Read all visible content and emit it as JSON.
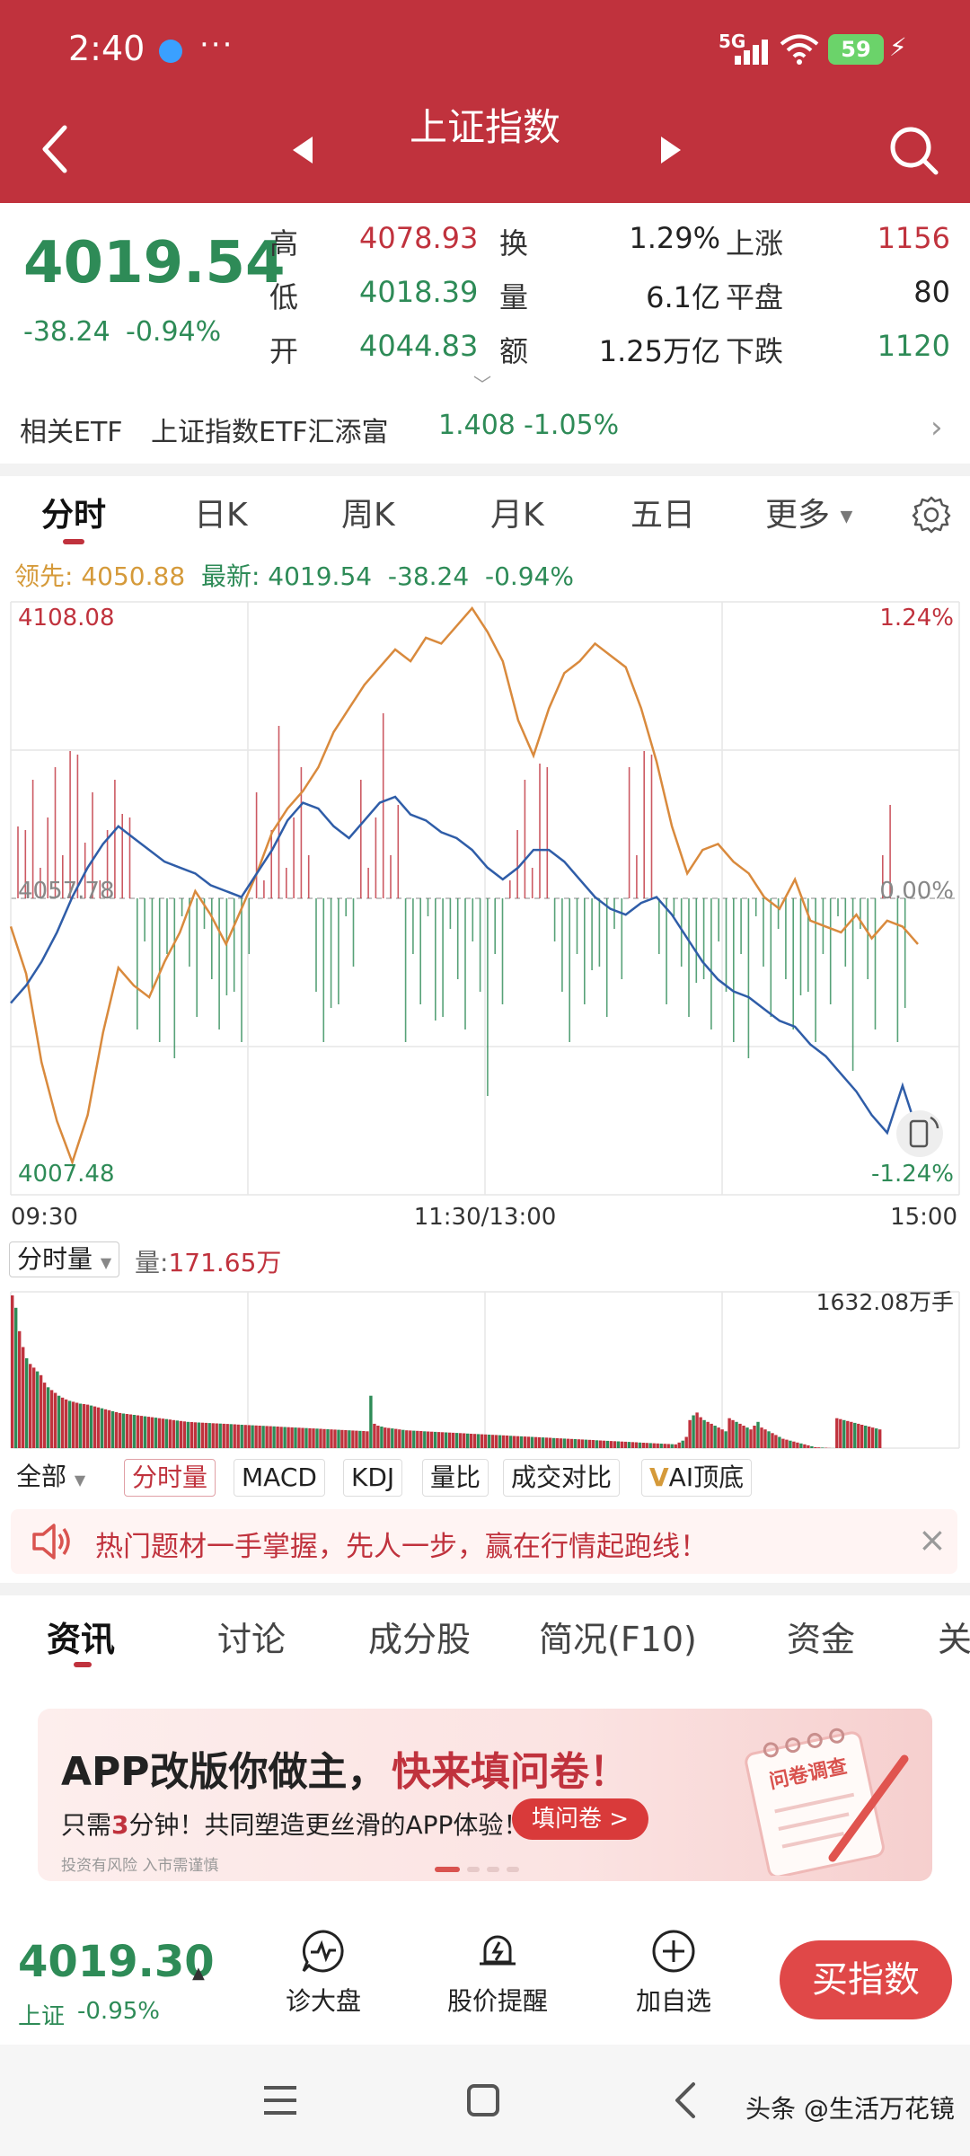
{
  "status_bar": {
    "time": "2:40",
    "more": "···",
    "network": "5G",
    "battery": "59"
  },
  "header": {
    "title": "上证指数",
    "subtitle": ""
  },
  "quote": {
    "last": "4019.54",
    "change": "-38.24",
    "change_pct": "-0.94%",
    "stats": [
      {
        "label": "高",
        "value": "4078.93",
        "color": "#c0323d"
      },
      {
        "label": "低",
        "value": "4018.39",
        "color": "#2e8b57"
      },
      {
        "label": "开",
        "value": "4044.83",
        "color": "#2e8b57"
      },
      {
        "label": "换",
        "value": "1.29%",
        "color": "#222222"
      },
      {
        "label": "量",
        "value": "6.1亿",
        "color": "#222222"
      },
      {
        "label": "额",
        "value": "1.25万亿",
        "color": "#222222"
      },
      {
        "label": "上涨",
        "value": "1156",
        "color": "#c0323d"
      },
      {
        "label": "平盘",
        "value": "80",
        "color": "#222222"
      },
      {
        "label": "下跌",
        "value": "1120",
        "color": "#2e8b57"
      }
    ]
  },
  "etf": {
    "label": "相关ETF",
    "name": "上证指数ETF汇添富",
    "price": "1.408",
    "change": "-1.05%"
  },
  "chart_tabs": [
    "分时",
    "日K",
    "周K",
    "月K",
    "五日",
    "更多"
  ],
  "legend": {
    "lead_label": "领先:",
    "lead_value": "4050.88",
    "last_label": "最新:",
    "last_value": "4019.54",
    "change": "-38.24",
    "change_pct": "-0.94%"
  },
  "chart_data": {
    "type": "line",
    "y_top": "4108.08",
    "y_mid": "4057.78",
    "y_bottom": "4007.48",
    "pct_top": "1.24%",
    "pct_mid": "0.00%",
    "pct_bottom": "-1.24%",
    "ylim": [
      4007.48,
      4108.08
    ],
    "x_ticks": [
      "09:30",
      "11:30/13:00",
      "15:00"
    ],
    "series": [
      {
        "name": "最新",
        "color": "#2f5da8",
        "values": [
          4040,
          4043,
          4047,
          4052,
          4058,
          4063,
          4067,
          4070,
          4068,
          4066,
          4064,
          4063,
          4062,
          4060,
          4059,
          4058,
          4062,
          4066,
          4071,
          4074,
          4073,
          4070,
          4068,
          4071,
          4074,
          4075,
          4072,
          4071,
          4069,
          4068,
          4066,
          4063,
          4061,
          4063,
          4066,
          4066,
          4064,
          4061,
          4058,
          4056,
          4055,
          4057,
          4058,
          4055,
          4051,
          4047,
          4044,
          4042,
          4041,
          4039,
          4037,
          4036,
          4033,
          4031,
          4028,
          4025,
          4021,
          4018,
          4026,
          4018
        ]
      },
      {
        "name": "领先",
        "color": "#d98a3d",
        "values": [
          4053,
          4045,
          4030,
          4020,
          4013,
          4021,
          4035,
          4046,
          4043,
          4041,
          4047,
          4052,
          4059,
          4055,
          4050,
          4056,
          4062,
          4069,
          4073,
          4076,
          4080,
          4086,
          4090,
          4094,
          4097,
          4100,
          4098,
          4102,
          4101,
          4104,
          4107,
          4103,
          4098,
          4088,
          4082,
          4090,
          4096,
          4098,
          4101,
          4099,
          4097,
          4090,
          4081,
          4070,
          4062,
          4066,
          4067,
          4064,
          4062,
          4058,
          4056,
          4061,
          4054,
          4053,
          4052,
          4055,
          4051,
          4054,
          4053,
          4050
        ]
      }
    ],
    "volume": {
      "label": "分时量",
      "current_label": "量:",
      "current": "171.65万",
      "max_label": "1632.08万手",
      "values": [
        1632,
        1500,
        1250,
        1080,
        960,
        900,
        860,
        820,
        780,
        700,
        650,
        620,
        590,
        560,
        540,
        520,
        505,
        495,
        485,
        475,
        470,
        465,
        455,
        445,
        435,
        425,
        415,
        405,
        395,
        385,
        375,
        370,
        365,
        360,
        355,
        350,
        345,
        340,
        335,
        330,
        325,
        320,
        315,
        310,
        305,
        300,
        295,
        290,
        285,
        280,
        278,
        276,
        274,
        272,
        270,
        268,
        266,
        264,
        262,
        260,
        258,
        256,
        254,
        252,
        250,
        248,
        246,
        244,
        242,
        240,
        238,
        236,
        234,
        232,
        230,
        228,
        226,
        224,
        222,
        220,
        218,
        216,
        214,
        212,
        210,
        208,
        206,
        204,
        202,
        200,
        198,
        196,
        194,
        192,
        190,
        188,
        186,
        184,
        182,
        180,
        560,
        260,
        240,
        230,
        220,
        215,
        210,
        205,
        200,
        195,
        190,
        188,
        186,
        184,
        182,
        180,
        178,
        176,
        174,
        172,
        170,
        168,
        166,
        164,
        162,
        160,
        158,
        156,
        154,
        152,
        150,
        148,
        146,
        144,
        142,
        140,
        138,
        136,
        134,
        132,
        130,
        128,
        126,
        124,
        122,
        120,
        118,
        116,
        114,
        112,
        110,
        108,
        106,
        104,
        102,
        100,
        98,
        96,
        94,
        92,
        90,
        88,
        86,
        84,
        82,
        80,
        78,
        76,
        74,
        72,
        70,
        68,
        66,
        64,
        62,
        60,
        58,
        56,
        54,
        52,
        50,
        48,
        46,
        44,
        42,
        40,
        60,
        80,
        120,
        300,
        350,
        380,
        330,
        300,
        280,
        260,
        240,
        220,
        200,
        180,
        320,
        300,
        280,
        260,
        240,
        220,
        200,
        240,
        280,
        220,
        200,
        180,
        160,
        140,
        120,
        100,
        90,
        80,
        70,
        60,
        50,
        40,
        30,
        20,
        10,
        8,
        6,
        4,
        2,
        1,
        320,
        310,
        300,
        290,
        280,
        270,
        260,
        250,
        240,
        230,
        220,
        210,
        200
      ]
    }
  },
  "indicators": [
    "全部",
    "分时量",
    "MACD",
    "KDJ",
    "量比",
    "成交对比",
    "AI顶底"
  ],
  "promo": {
    "text": "热门题材一手掌握，先人一步，赢在行情起跑线！",
    "close": "×"
  },
  "news_tabs": [
    "资讯",
    "讨论",
    "成分股",
    "简况(F10)",
    "资金",
    "关"
  ],
  "ad": {
    "title_a": "APP改版你做主，",
    "title_b": "快来填问卷！",
    "body_a": "只需",
    "body_highlight": "3",
    "body_b": "分钟！共同塑造更丝滑的APP体验！",
    "cta": "填问卷 >",
    "disclaimer": "投资有风险  入市需谨慎",
    "art_label": "问卷调查"
  },
  "bottom_bar": {
    "price": "4019.30",
    "name": "上证",
    "change_pct": "-0.95%",
    "actions": [
      "诊大盘",
      "股价提醒",
      "加自选"
    ],
    "buy": "买指数"
  },
  "watermark": "头条 @生活万花镜",
  "colors": {
    "brand": "#c0323d",
    "up": "#c0323d",
    "down": "#2e8b57",
    "lead_line": "#d98a3d",
    "price_line": "#2f5da8"
  }
}
